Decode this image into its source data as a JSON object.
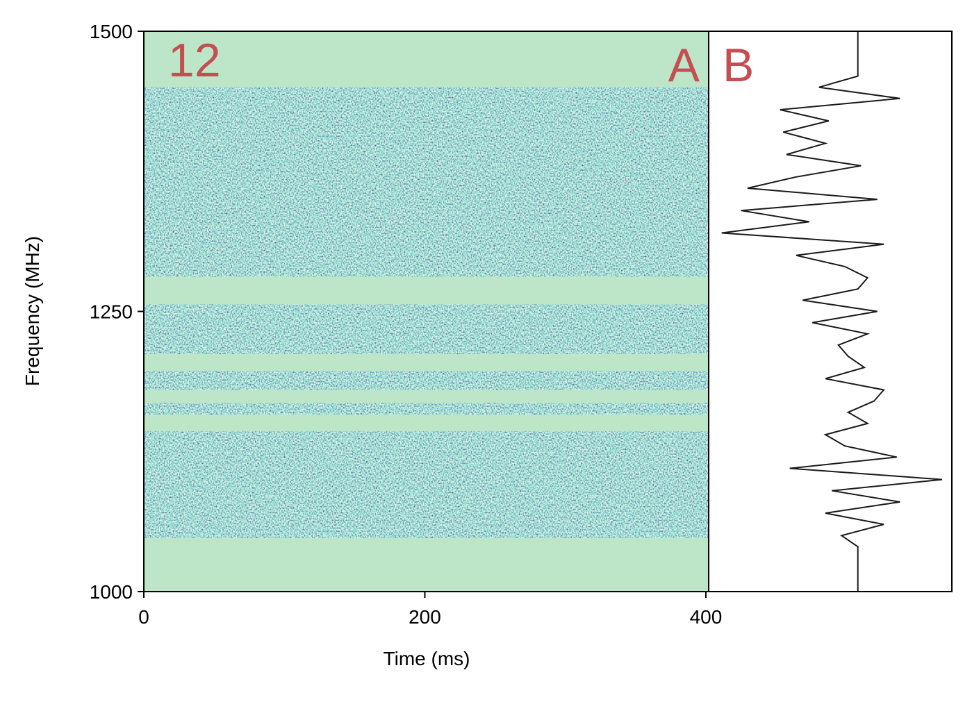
{
  "chart_data": [
    {
      "type": "heatmap",
      "annotations": [
        "12",
        "A"
      ],
      "xlabel": "Time (ms)",
      "ylabel": "Frequency (MHz)",
      "xlim": [
        0,
        402
      ],
      "xticks": [
        0,
        200,
        400
      ],
      "ylim": [
        1000,
        1500
      ],
      "yticks": [
        1000,
        1250,
        1500
      ],
      "bands": [
        [
          1048,
          1143
        ],
        [
          1158,
          1168
        ],
        [
          1180,
          1197
        ],
        [
          1212,
          1256
        ],
        [
          1281,
          1450
        ]
      ],
      "mask_color": "#bde6c8",
      "annotation_color": "#c44e52"
    },
    {
      "type": "line",
      "annotations": [
        "B"
      ],
      "xlim": [
        -4.6,
        2.9
      ],
      "ylim": [
        1000,
        1500
      ],
      "color": "#1a1a1a",
      "annotation_color": "#c44e52",
      "y": [
        1000,
        1010,
        1020,
        1030,
        1040,
        1050,
        1060,
        1070,
        1080,
        1090,
        1100,
        1110,
        1120,
        1130,
        1140,
        1150,
        1160,
        1170,
        1180,
        1190,
        1200,
        1210,
        1220,
        1230,
        1240,
        1250,
        1260,
        1270,
        1280,
        1290,
        1300,
        1310,
        1320,
        1330,
        1340,
        1350,
        1360,
        1370,
        1380,
        1390,
        1400,
        1410,
        1420,
        1430,
        1440,
        1450,
        1460,
        1470,
        1480,
        1490,
        1500
      ],
      "values": [
        0,
        0,
        0,
        0,
        0,
        -0.5,
        0.8,
        -1.0,
        1.3,
        -0.8,
        2.6,
        -2.1,
        1.2,
        -0.4,
        -1.0,
        0.3,
        -0.3,
        0.5,
        0.8,
        -1.0,
        0.2,
        -0.3,
        -0.6,
        0.3,
        -1.4,
        0.6,
        -1.7,
        0,
        0.3,
        -0.4,
        -1.9,
        0.8,
        -4.2,
        -1.5,
        -3.6,
        0.6,
        -3.4,
        -1.9,
        0.1,
        -2.2,
        -1.0,
        -2.3,
        -0.9,
        -2.4,
        1.3,
        -1.2,
        0,
        0,
        0,
        0,
        0
      ]
    }
  ]
}
